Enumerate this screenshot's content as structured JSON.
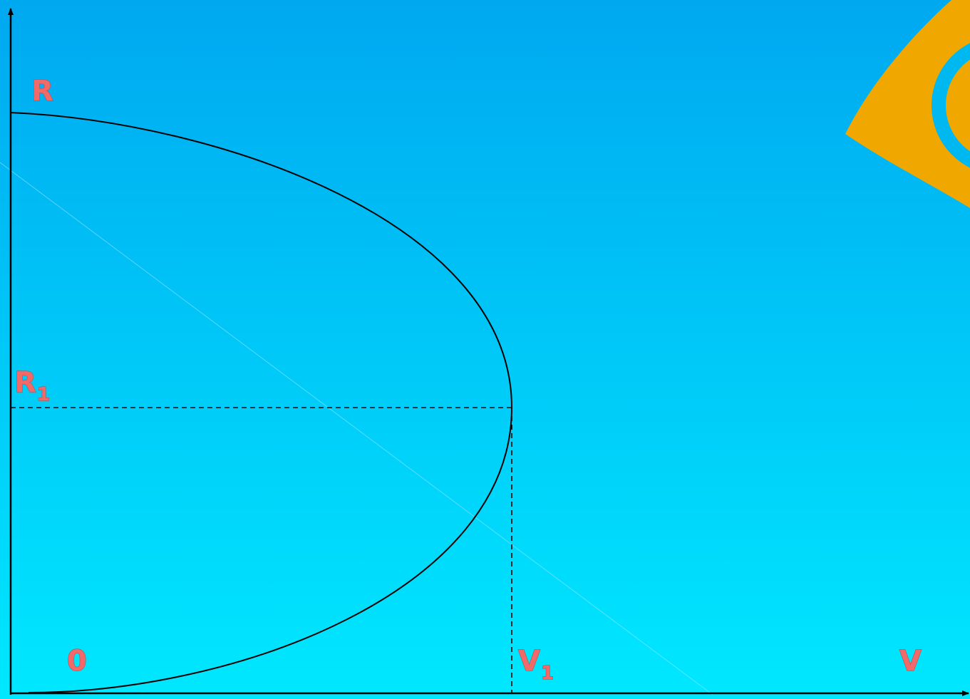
{
  "slide": {
    "background_top": "#00a8f0",
    "background_bottom": "#00e8ff",
    "decor_accent": "#f0a800",
    "decor_ring": "#00b8f0",
    "label_color": "#f06a6a"
  },
  "diagram": {
    "y_axis_label": "R",
    "r1_label_main": "R",
    "r1_label_sub": "1",
    "origin_label": "0",
    "v1_label_main": "V",
    "v1_label_sub": "1",
    "x_axis_label": "V"
  }
}
